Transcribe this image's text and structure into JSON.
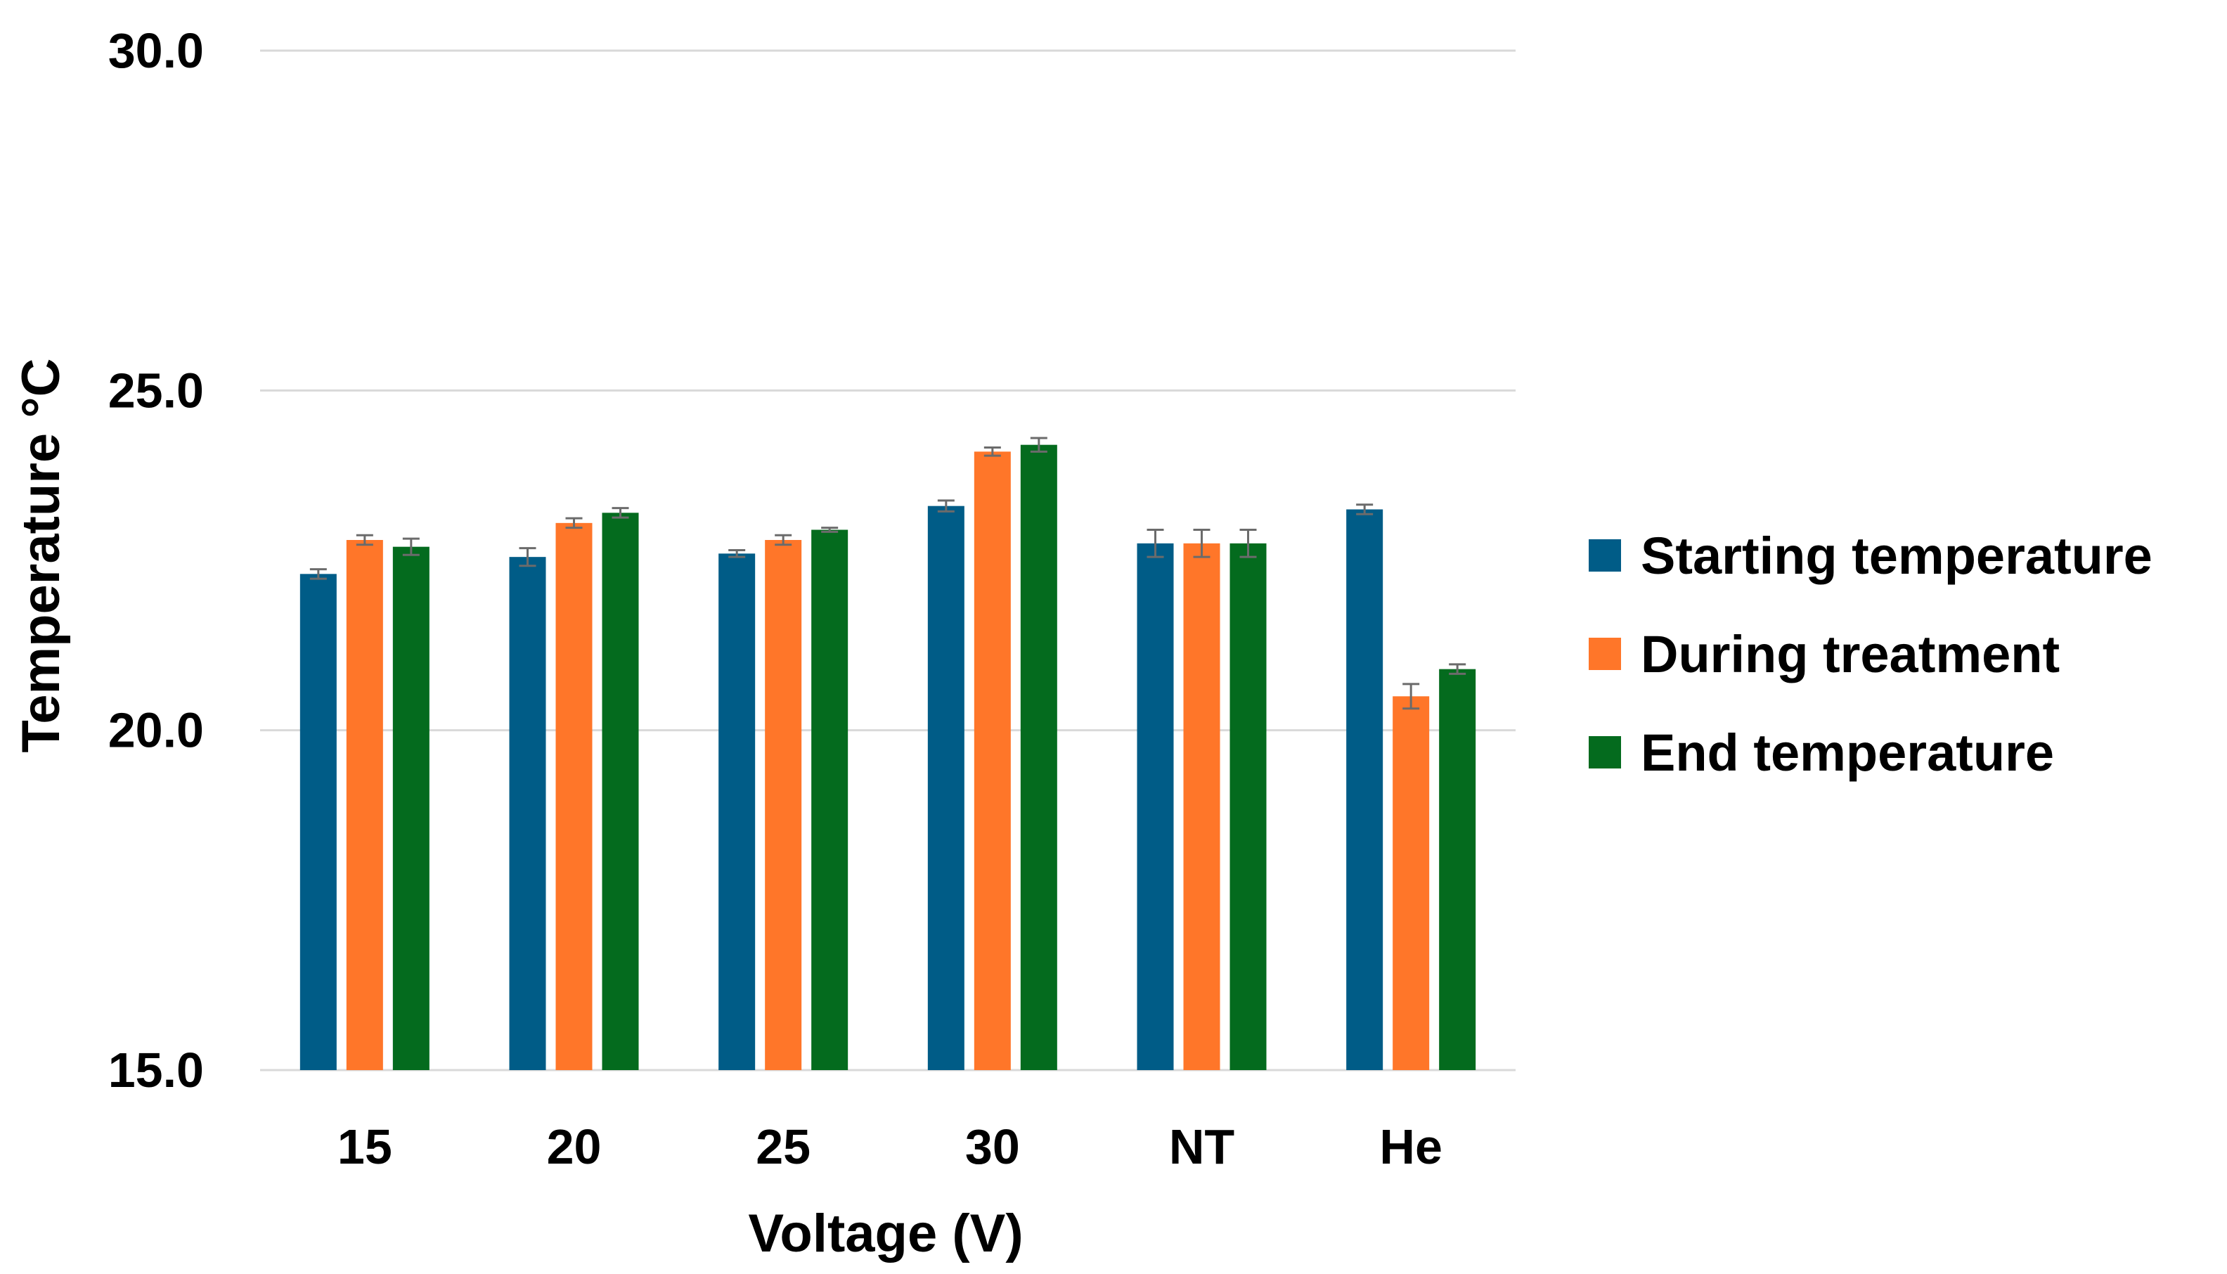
{
  "chart_data": {
    "type": "bar",
    "title": "",
    "xlabel": "Voltage (V)",
    "ylabel": "Temperature °C",
    "ylim": [
      15.0,
      30.0
    ],
    "yticks": [
      "15.0",
      "20.0",
      "25.0",
      "30.0"
    ],
    "ytick_values": [
      15.0,
      20.0,
      25.0,
      30.0
    ],
    "grid": true,
    "legend_position": "right",
    "categories": [
      "15",
      "20",
      "25",
      "30",
      "NT",
      "He"
    ],
    "series": [
      {
        "name": "Starting temperature",
        "color": "#005C87",
        "values": [
          22.3,
          22.55,
          22.6,
          23.3,
          22.75,
          23.25
        ],
        "errors": [
          0.07,
          0.13,
          0.05,
          0.08,
          0.2,
          0.07
        ]
      },
      {
        "name": "During treatment",
        "color": "#FF7629",
        "values": [
          22.8,
          23.05,
          22.8,
          24.1,
          22.75,
          20.5
        ],
        "errors": [
          0.07,
          0.07,
          0.07,
          0.06,
          0.2,
          0.18
        ]
      },
      {
        "name": "End temperature",
        "color": "#046B1E",
        "values": [
          22.7,
          23.2,
          22.95,
          24.2,
          22.75,
          20.9
        ],
        "errors": [
          0.12,
          0.07,
          0.03,
          0.1,
          0.2,
          0.07
        ]
      }
    ]
  }
}
